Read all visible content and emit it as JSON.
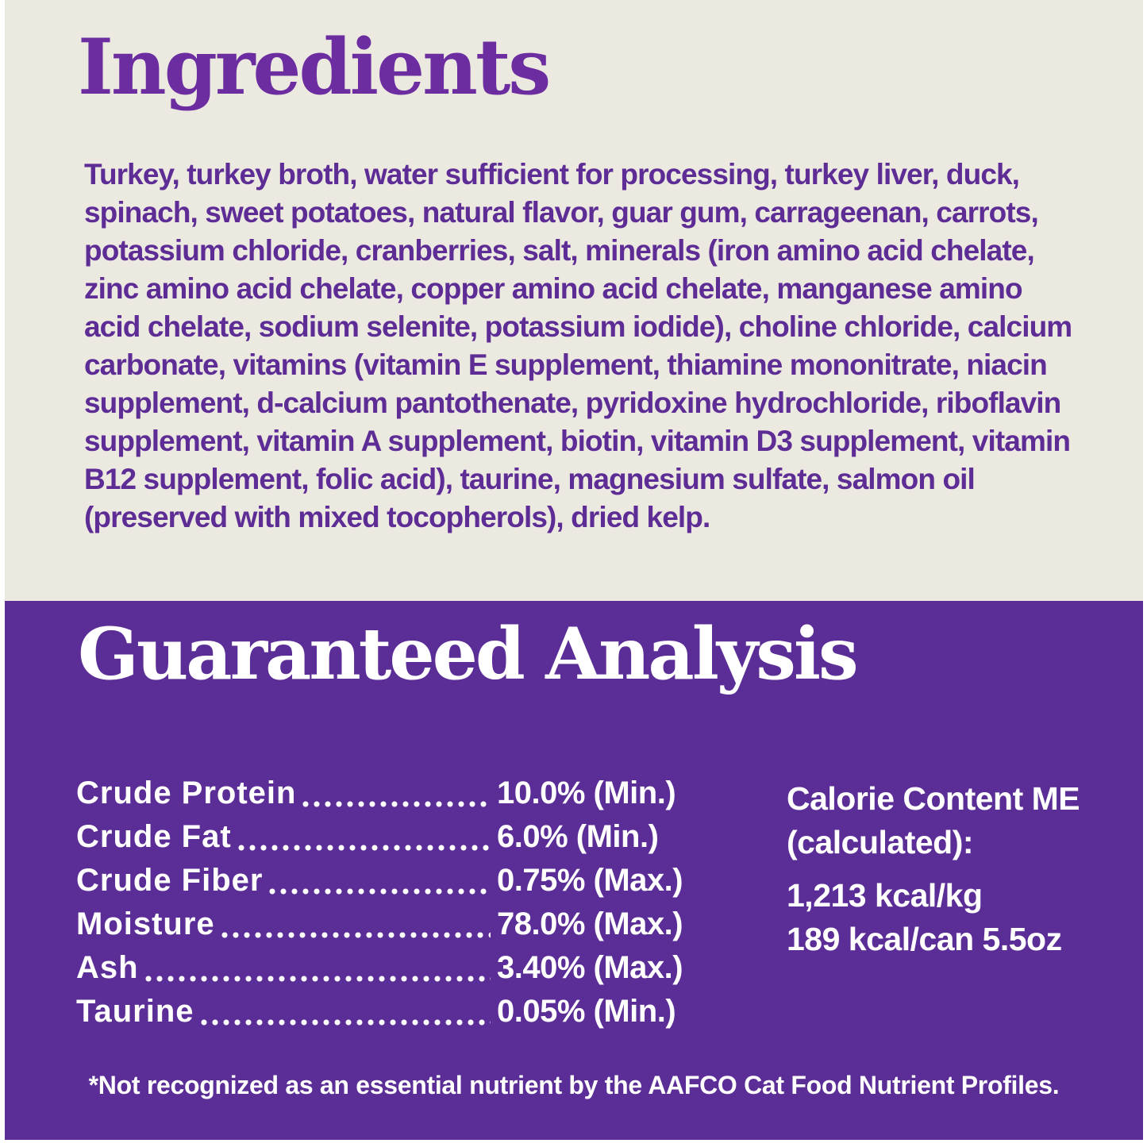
{
  "colors": {
    "cream_background": "#ECE9E1",
    "purple_background": "#5B2D96",
    "title_purple": "#6C2DA0",
    "body_text_purple": "#5D2C95",
    "white_text": "#FFFFFF"
  },
  "ingredients": {
    "title": "Ingredients",
    "text": "Turkey, turkey broth, water sufficient for processing, turkey liver, duck, spinach, sweet potatoes, natural flavor, guar gum, carrageenan, carrots, potassium chloride, cranberries, salt, minerals (iron amino acid chelate, zinc amino acid chelate, copper amino acid chelate, manganese amino acid chelate, sodium selenite, potassium iodide), choline chloride, calcium carbonate, vitamins (vitamin E supplement, thiamine mononitrate, niacin supplement, d-calcium pantothenate, pyridoxine hydrochloride, riboflavin supplement, vitamin A supplement, biotin, vitamin D3 supplement, vitamin B12 supplement, folic acid), taurine, magnesium sulfate, salmon oil (preserved with mixed tocopherols), dried kelp."
  },
  "guaranteed_analysis": {
    "title": "Guaranteed Analysis",
    "rows": [
      {
        "label": "Crude Protein",
        "value": "10.0% (Min.)"
      },
      {
        "label": "Crude Fat",
        "value": "6.0% (Min.)"
      },
      {
        "label": "Crude Fiber",
        "value": "0.75% (Max.)"
      },
      {
        "label": "Moisture",
        "value": "78.0% (Max.)"
      },
      {
        "label": "Ash",
        "value": "3.40% (Max.)"
      },
      {
        "label": "Taurine",
        "value": "0.05% (Min.)"
      }
    ],
    "calorie_content": {
      "heading_line1": "Calorie Content ME",
      "heading_line2": "(calculated):",
      "value_line1": "1,213 kcal/kg",
      "value_line2": "189 kcal/can 5.5oz"
    },
    "footnote": "*Not recognized as an essential nutrient by the AAFCO Cat Food Nutrient Profiles."
  }
}
